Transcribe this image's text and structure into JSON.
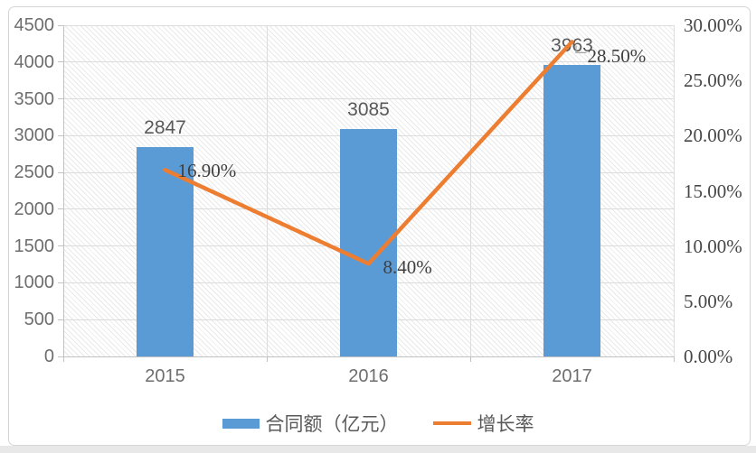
{
  "chart_data": {
    "type": "bar",
    "subtype": "combo-bar-line-dual-axis",
    "title": "",
    "categories": [
      "2015",
      "2016",
      "2017"
    ],
    "series": [
      {
        "name": "合同额（亿元）",
        "type": "bar",
        "axis": "left",
        "color": "#5B9BD5",
        "values": [
          2847,
          3085,
          3963
        ],
        "labels": [
          "2847",
          "3085",
          "3963"
        ]
      },
      {
        "name": "增长率",
        "type": "line",
        "axis": "right",
        "color": "#ED7D31",
        "values": [
          16.9,
          8.4,
          28.5
        ],
        "labels": [
          "16.90%",
          "8.40%",
          "28.50%"
        ]
      }
    ],
    "left_axis": {
      "min": 0,
      "max": 4500,
      "step": 500,
      "ticks": [
        "0",
        "500",
        "1000",
        "1500",
        "2000",
        "2500",
        "3000",
        "3500",
        "4000",
        "4500"
      ]
    },
    "right_axis": {
      "min": 0,
      "max": 30,
      "step": 5,
      "ticks": [
        "0.00%",
        "5.00%",
        "10.00%",
        "15.00%",
        "20.00%",
        "25.00%",
        "30.00%"
      ]
    },
    "grid": "horizontal and vertical category gridlines on",
    "plot_background": "diagonal-hatch",
    "legend_position": "bottom"
  },
  "legend": {
    "bar_label": "合同额（亿元）",
    "line_label": "增长率"
  },
  "colors": {
    "bar": "#5B9BD5",
    "line": "#ED7D31",
    "gridline": "#dcdcdc",
    "axis": "#c2c2c2",
    "text_gray": "#595959",
    "frame_border": "#d5d5d5",
    "bottom_strip": "#e8e8e8"
  }
}
